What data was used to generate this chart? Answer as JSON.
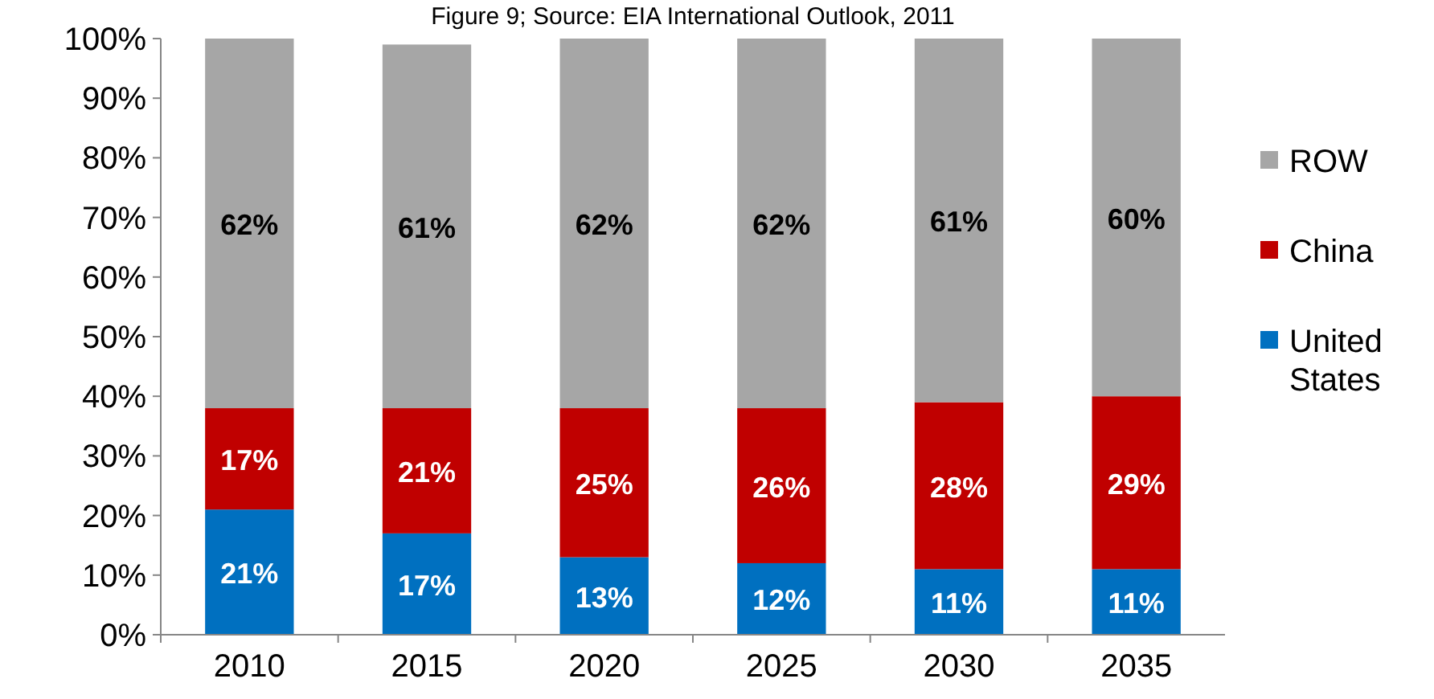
{
  "chart_data": {
    "type": "bar",
    "title": "Figure 9; Source: EIA International Outlook, 2011",
    "stacked": true,
    "categories": [
      "2010",
      "2015",
      "2020",
      "2025",
      "2030",
      "2035"
    ],
    "series": [
      {
        "name": "United States",
        "color": "#0070c0",
        "values": [
          21,
          17,
          13,
          12,
          11,
          11
        ],
        "value_labels": [
          "21%",
          "17%",
          "13%",
          "12%",
          "11%",
          "11%"
        ]
      },
      {
        "name": "China",
        "color": "#c00000",
        "values": [
          17,
          21,
          25,
          26,
          28,
          29
        ],
        "value_labels": [
          "17%",
          "21%",
          "25%",
          "26%",
          "28%",
          "29%"
        ]
      },
      {
        "name": "ROW",
        "color": "#a6a6a6",
        "values": [
          62,
          61,
          62,
          62,
          61,
          60
        ],
        "value_labels": [
          "62%",
          "61%",
          "62%",
          "62%",
          "61%",
          "60%"
        ]
      }
    ],
    "ylim": [
      0,
      100
    ],
    "yticks": [
      {
        "value": 0,
        "label": "0%"
      },
      {
        "value": 10,
        "label": "10%"
      },
      {
        "value": 20,
        "label": "20%"
      },
      {
        "value": 30,
        "label": "30%"
      },
      {
        "value": 40,
        "label": "40%"
      },
      {
        "value": 50,
        "label": "50%"
      },
      {
        "value": 60,
        "label": "60%"
      },
      {
        "value": 70,
        "label": "70%"
      },
      {
        "value": 80,
        "label": "80%"
      },
      {
        "value": 90,
        "label": "90%"
      },
      {
        "value": 100,
        "label": "100%"
      }
    ],
    "grid": false,
    "legend": "right"
  }
}
